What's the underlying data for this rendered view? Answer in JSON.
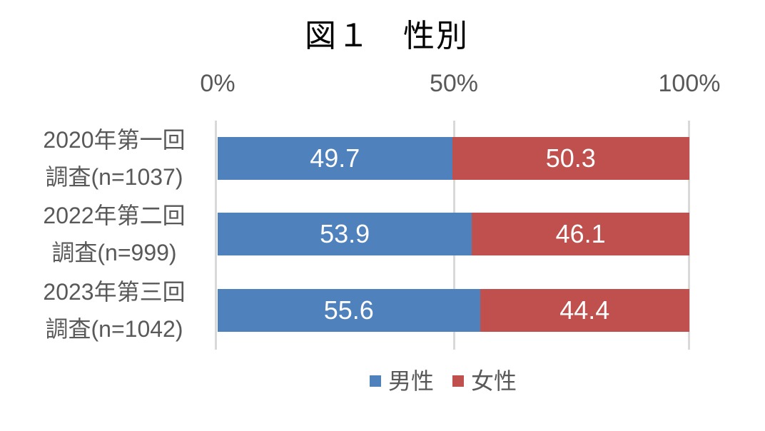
{
  "chart_data": {
    "type": "bar",
    "orientation": "horizontal",
    "stacked": true,
    "title": "図１　性別",
    "x_ticks": [
      "0%",
      "50%",
      "100%"
    ],
    "xlim": [
      0,
      100
    ],
    "grid": "vertical-major",
    "legend_position": "bottom-center",
    "categories": [
      "2020年第一回 調査(n=1037)",
      "2022年第二回 調査(n=999)",
      "2023年第三回 調査(n=1042)"
    ],
    "series": [
      {
        "name": "男性",
        "color": "#4F81BD",
        "values": [
          49.7,
          53.9,
          55.6
        ]
      },
      {
        "name": "女性",
        "color": "#C0504D",
        "values": [
          50.3,
          46.1,
          44.4
        ]
      }
    ],
    "rows": [
      {
        "label_line1": "2020年第一回",
        "label_line2": "調査(n=1037)",
        "male_value": 49.7,
        "female_value": 50.3,
        "male_label": "49.7",
        "female_label": "50.3"
      },
      {
        "label_line1": "2022年第二回",
        "label_line2": "調査(n=999)",
        "male_value": 53.9,
        "female_value": 46.1,
        "male_label": "53.9",
        "female_label": "46.1"
      },
      {
        "label_line1": "2023年第三回",
        "label_line2": "調査(n=1042)",
        "male_value": 55.6,
        "female_value": 44.4,
        "male_label": "55.6",
        "female_label": "44.4"
      }
    ],
    "legend": {
      "items": [
        {
          "label": "男性",
          "color": "#4F81BD"
        },
        {
          "label": "女性",
          "color": "#C0504D"
        }
      ]
    },
    "colors": {
      "male": "#4F81BD",
      "female": "#C0504D",
      "gridline": "#D9D9D9",
      "axis_text": "#595959",
      "title_text": "#000000",
      "value_text": "#FFFFFF",
      "background": "#FFFFFF"
    }
  }
}
